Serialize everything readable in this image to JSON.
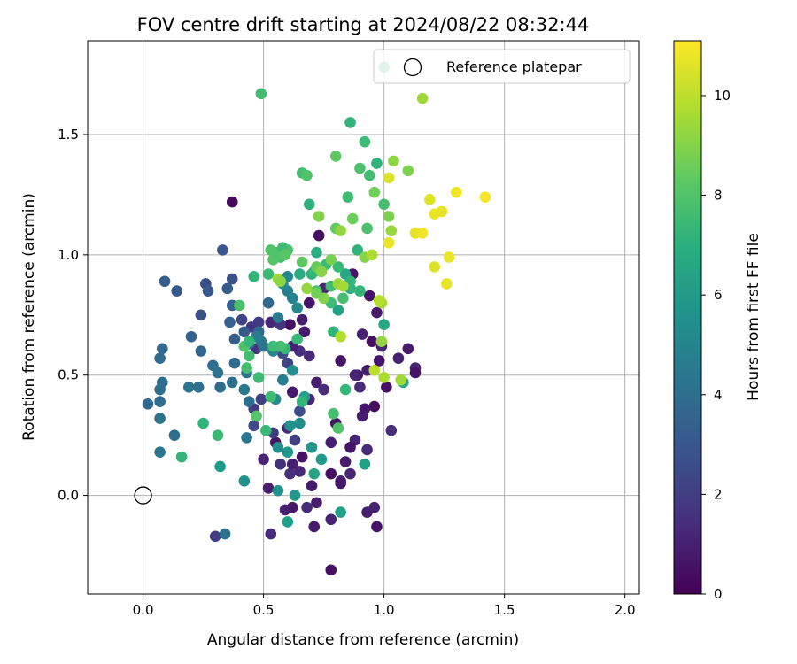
{
  "chart_data": {
    "type": "scatter",
    "title": "FOV centre drift starting at 2024/08/22 08:32:44",
    "xlabel": "Angular distance from reference (arcmin)",
    "ylabel": "Rotation from reference (arcmin)",
    "colorbar_label": "Hours from first FF file",
    "colormap": "viridis",
    "xlim": [
      -0.23,
      2.06
    ],
    "ylim": [
      -0.41,
      1.89
    ],
    "clim": [
      0,
      11.1
    ],
    "x_ticks": [
      "0.0",
      "0.5",
      "1.0",
      "1.5",
      "2.0"
    ],
    "y_ticks": [
      "0.0",
      "0.5",
      "1.0",
      "1.5"
    ],
    "colorbar_ticks": [
      "0",
      "2",
      "4",
      "6",
      "8",
      "10"
    ],
    "grid": true,
    "legend_position": "top-right",
    "reference": {
      "label": "Reference platepar",
      "x": 0.0,
      "y": 0.0
    },
    "points": [
      {
        "x": 0.37,
        "y": 1.22,
        "h": 0.3
      },
      {
        "x": 0.73,
        "y": 1.08,
        "h": 0.5
      },
      {
        "x": 0.69,
        "y": 0.8,
        "h": 0.6
      },
      {
        "x": 0.66,
        "y": 0.73,
        "h": 0.9
      },
      {
        "x": 0.61,
        "y": 0.71,
        "h": 0.5
      },
      {
        "x": 0.75,
        "y": 0.86,
        "h": 1.2
      },
      {
        "x": 0.87,
        "y": 0.92,
        "h": 0.7
      },
      {
        "x": 0.94,
        "y": 0.83,
        "h": 0.6
      },
      {
        "x": 0.91,
        "y": 0.67,
        "h": 1.0
      },
      {
        "x": 0.97,
        "y": 0.76,
        "h": 0.8
      },
      {
        "x": 0.95,
        "y": 0.64,
        "h": 0.4
      },
      {
        "x": 0.99,
        "y": 0.62,
        "h": 1.1
      },
      {
        "x": 0.98,
        "y": 0.56,
        "h": 0.6
      },
      {
        "x": 0.93,
        "y": 0.52,
        "h": 0.9
      },
      {
        "x": 0.89,
        "y": 0.5,
        "h": 0.7
      },
      {
        "x": 0.9,
        "y": 0.45,
        "h": 1.3
      },
      {
        "x": 1.01,
        "y": 0.45,
        "h": 0.5
      },
      {
        "x": 1.06,
        "y": 0.57,
        "h": 1.0
      },
      {
        "x": 1.1,
        "y": 0.61,
        "h": 0.8
      },
      {
        "x": 1.13,
        "y": 0.53,
        "h": 1.2
      },
      {
        "x": 1.13,
        "y": 0.51,
        "h": 0.6
      },
      {
        "x": 1.03,
        "y": 0.27,
        "h": 1.4
      },
      {
        "x": 0.92,
        "y": 0.36,
        "h": 0.7
      },
      {
        "x": 0.96,
        "y": 0.37,
        "h": 0.4
      },
      {
        "x": 0.91,
        "y": 0.33,
        "h": 0.9
      },
      {
        "x": 0.88,
        "y": 0.23,
        "h": 1.1
      },
      {
        "x": 0.86,
        "y": 0.2,
        "h": 0.6
      },
      {
        "x": 0.93,
        "y": 0.19,
        "h": 1.3
      },
      {
        "x": 0.84,
        "y": 0.14,
        "h": 0.8
      },
      {
        "x": 0.78,
        "y": 0.09,
        "h": 0.5
      },
      {
        "x": 0.82,
        "y": 0.06,
        "h": 1.0
      },
      {
        "x": 0.86,
        "y": 0.09,
        "h": 1.2
      },
      {
        "x": 0.82,
        "y": 0.05,
        "h": 0.7
      },
      {
        "x": 0.93,
        "y": -0.07,
        "h": 0.9
      },
      {
        "x": 0.96,
        "y": -0.05,
        "h": 1.0
      },
      {
        "x": 0.97,
        "y": -0.13,
        "h": 0.6
      },
      {
        "x": 0.78,
        "y": -0.1,
        "h": 1.1
      },
      {
        "x": 0.71,
        "y": -0.13,
        "h": 0.8
      },
      {
        "x": 0.78,
        "y": -0.31,
        "h": 0.5
      },
      {
        "x": 0.72,
        "y": -0.03,
        "h": 0.9
      },
      {
        "x": 0.68,
        "y": -0.05,
        "h": 1.3
      },
      {
        "x": 0.62,
        "y": -0.05,
        "h": 0.7
      },
      {
        "x": 0.59,
        "y": -0.06,
        "h": 1.0
      },
      {
        "x": 0.53,
        "y": -0.16,
        "h": 1.4
      },
      {
        "x": 0.7,
        "y": 0.04,
        "h": 0.8
      },
      {
        "x": 0.65,
        "y": 0.1,
        "h": 1.2
      },
      {
        "x": 0.66,
        "y": 0.16,
        "h": 0.6
      },
      {
        "x": 0.61,
        "y": 0.09,
        "h": 1.5
      },
      {
        "x": 0.62,
        "y": 0.13,
        "h": 1.0
      },
      {
        "x": 0.52,
        "y": 0.03,
        "h": 0.9
      },
      {
        "x": 0.57,
        "y": 0.13,
        "h": 1.6
      },
      {
        "x": 0.5,
        "y": 0.15,
        "h": 1.1
      },
      {
        "x": 0.55,
        "y": 0.22,
        "h": 0.7
      },
      {
        "x": 0.6,
        "y": 0.28,
        "h": 1.3
      },
      {
        "x": 0.62,
        "y": 0.43,
        "h": 0.8
      },
      {
        "x": 0.69,
        "y": 0.4,
        "h": 1.2
      },
      {
        "x": 0.72,
        "y": 0.47,
        "h": 0.9
      },
      {
        "x": 0.75,
        "y": 0.44,
        "h": 1.4
      },
      {
        "x": 0.78,
        "y": 0.22,
        "h": 1.0
      },
      {
        "x": 0.8,
        "y": 0.3,
        "h": 0.7
      },
      {
        "x": 0.88,
        "y": 0.5,
        "h": 1.1
      },
      {
        "x": 0.82,
        "y": 0.56,
        "h": 0.6
      },
      {
        "x": 0.69,
        "y": 0.58,
        "h": 1.3
      },
      {
        "x": 0.67,
        "y": 0.68,
        "h": 0.8
      },
      {
        "x": 0.65,
        "y": 0.6,
        "h": 1.5
      },
      {
        "x": 0.62,
        "y": 0.62,
        "h": 1.0
      },
      {
        "x": 0.57,
        "y": 0.71,
        "h": 1.7
      },
      {
        "x": 0.53,
        "y": 0.72,
        "h": 1.2
      },
      {
        "x": 0.48,
        "y": 0.72,
        "h": 2.0
      },
      {
        "x": 0.45,
        "y": 0.7,
        "h": 1.8
      },
      {
        "x": 0.41,
        "y": 0.73,
        "h": 2.2
      },
      {
        "x": 0.47,
        "y": 0.61,
        "h": 1.6
      },
      {
        "x": 0.46,
        "y": 0.36,
        "h": 1.9
      },
      {
        "x": 0.49,
        "y": 0.4,
        "h": 2.1
      },
      {
        "x": 0.47,
        "y": 0.33,
        "h": 1.5
      },
      {
        "x": 0.46,
        "y": 0.29,
        "h": 2.4
      },
      {
        "x": 0.54,
        "y": 0.26,
        "h": 2.0
      },
      {
        "x": 0.65,
        "y": 0.35,
        "h": 2.6
      },
      {
        "x": 0.6,
        "y": 0.55,
        "h": 2.3
      },
      {
        "x": 0.63,
        "y": 0.23,
        "h": 2.1
      },
      {
        "x": 0.58,
        "y": 0.59,
        "h": 2.5
      },
      {
        "x": 0.37,
        "y": 0.9,
        "h": 2.7
      },
      {
        "x": 0.33,
        "y": 1.02,
        "h": 2.9
      },
      {
        "x": 0.26,
        "y": 0.88,
        "h": 2.6
      },
      {
        "x": 0.24,
        "y": 0.75,
        "h": 2.8
      },
      {
        "x": 0.27,
        "y": 0.85,
        "h": 3.0
      },
      {
        "x": 0.35,
        "y": 0.86,
        "h": 3.2
      },
      {
        "x": 0.14,
        "y": 0.85,
        "h": 3.1
      },
      {
        "x": 0.09,
        "y": 0.89,
        "h": 3.3
      },
      {
        "x": 0.36,
        "y": 0.72,
        "h": 3.4
      },
      {
        "x": 0.42,
        "y": 0.68,
        "h": 3.1
      },
      {
        "x": 0.44,
        "y": 0.63,
        "h": 3.6
      },
      {
        "x": 0.38,
        "y": 0.65,
        "h": 3.3
      },
      {
        "x": 0.37,
        "y": 0.79,
        "h": 3.5
      },
      {
        "x": 0.48,
        "y": 0.68,
        "h": 3.8
      },
      {
        "x": 0.52,
        "y": 0.8,
        "h": 3.7
      },
      {
        "x": 0.2,
        "y": 0.66,
        "h": 3.4
      },
      {
        "x": 0.24,
        "y": 0.6,
        "h": 3.6
      },
      {
        "x": 0.08,
        "y": 0.61,
        "h": 3.8
      },
      {
        "x": 0.07,
        "y": 0.57,
        "h": 3.9
      },
      {
        "x": 0.08,
        "y": 0.47,
        "h": 4.0
      },
      {
        "x": 0.07,
        "y": 0.44,
        "h": 4.1
      },
      {
        "x": 0.07,
        "y": 0.39,
        "h": 3.9
      },
      {
        "x": 0.07,
        "y": 0.32,
        "h": 4.2
      },
      {
        "x": 0.02,
        "y": 0.38,
        "h": 3.7
      },
      {
        "x": 0.13,
        "y": 0.25,
        "h": 4.0
      },
      {
        "x": 0.07,
        "y": 0.18,
        "h": 4.3
      },
      {
        "x": 0.29,
        "y": 0.54,
        "h": 4.0
      },
      {
        "x": 0.31,
        "y": 0.51,
        "h": 4.2
      },
      {
        "x": 0.23,
        "y": 0.45,
        "h": 4.1
      },
      {
        "x": 0.19,
        "y": 0.45,
        "h": 4.3
      },
      {
        "x": 0.32,
        "y": 0.45,
        "h": 3.9
      },
      {
        "x": 0.37,
        "y": 0.47,
        "h": 4.1
      },
      {
        "x": 0.38,
        "y": 0.55,
        "h": 3.8
      },
      {
        "x": 0.43,
        "y": 0.51,
        "h": 4.2
      },
      {
        "x": 0.42,
        "y": 0.44,
        "h": 4.4
      },
      {
        "x": 0.44,
        "y": 0.39,
        "h": 4.0
      },
      {
        "x": 0.43,
        "y": 0.24,
        "h": 4.3
      },
      {
        "x": 0.3,
        "y": -0.17,
        "h": 2.0
      },
      {
        "x": 0.34,
        "y": -0.16,
        "h": 4.2
      },
      {
        "x": 0.49,
        "y": 0.64,
        "h": 4.4
      },
      {
        "x": 0.47,
        "y": 0.66,
        "h": 4.6
      },
      {
        "x": 0.5,
        "y": 0.62,
        "h": 4.2
      },
      {
        "x": 0.56,
        "y": 0.74,
        "h": 4.5
      },
      {
        "x": 0.59,
        "y": 0.61,
        "h": 4.7
      },
      {
        "x": 0.58,
        "y": 0.48,
        "h": 4.8
      },
      {
        "x": 0.6,
        "y": 0.85,
        "h": 4.9
      },
      {
        "x": 0.6,
        "y": 0.91,
        "h": 5.1
      },
      {
        "x": 0.62,
        "y": 0.82,
        "h": 5.0
      },
      {
        "x": 0.64,
        "y": 0.78,
        "h": 5.2
      },
      {
        "x": 0.58,
        "y": 0.88,
        "h": 5.4
      },
      {
        "x": 0.54,
        "y": 0.6,
        "h": 5.0
      },
      {
        "x": 0.55,
        "y": 0.4,
        "h": 5.3
      },
      {
        "x": 0.62,
        "y": 0.52,
        "h": 5.5
      },
      {
        "x": 0.61,
        "y": 0.29,
        "h": 5.6
      },
      {
        "x": 0.65,
        "y": 0.3,
        "h": 5.4
      },
      {
        "x": 0.56,
        "y": 0.02,
        "h": 5.7
      },
      {
        "x": 0.6,
        "y": 0.18,
        "h": 5.8
      },
      {
        "x": 0.7,
        "y": 0.2,
        "h": 5.9
      },
      {
        "x": 0.74,
        "y": 0.15,
        "h": 6.0
      },
      {
        "x": 0.56,
        "y": 0.2,
        "h": 5.5
      },
      {
        "x": 0.42,
        "y": 0.06,
        "h": 5.6
      },
      {
        "x": 0.32,
        "y": 0.12,
        "h": 6.1
      },
      {
        "x": 0.6,
        "y": -0.11,
        "h": 6.2
      },
      {
        "x": 0.63,
        "y": 0.0,
        "h": 5.9
      },
      {
        "x": 0.82,
        "y": -0.07,
        "h": 6.3
      },
      {
        "x": 0.67,
        "y": 0.41,
        "h": 6.2
      },
      {
        "x": 0.71,
        "y": 0.09,
        "h": 6.5
      },
      {
        "x": 0.81,
        "y": 0.77,
        "h": 6.4
      },
      {
        "x": 0.84,
        "y": 0.92,
        "h": 6.6
      },
      {
        "x": 0.92,
        "y": 0.13,
        "h": 6.3
      },
      {
        "x": 1.0,
        "y": 0.71,
        "h": 6.6
      },
      {
        "x": 1.08,
        "y": 0.47,
        "h": 6.7
      },
      {
        "x": 0.69,
        "y": 1.21,
        "h": 7.0
      },
      {
        "x": 0.72,
        "y": 1.01,
        "h": 6.9
      },
      {
        "x": 0.89,
        "y": 1.02,
        "h": 7.2
      },
      {
        "x": 0.86,
        "y": 0.86,
        "h": 7.1
      },
      {
        "x": 0.9,
        "y": 0.85,
        "h": 7.3
      },
      {
        "x": 0.65,
        "y": 0.92,
        "h": 6.8
      },
      {
        "x": 0.7,
        "y": 0.92,
        "h": 7.0
      },
      {
        "x": 0.71,
        "y": 0.93,
        "h": 7.4
      },
      {
        "x": 0.76,
        "y": 0.96,
        "h": 7.6
      },
      {
        "x": 0.81,
        "y": 0.95,
        "h": 7.5
      },
      {
        "x": 0.86,
        "y": 0.89,
        "h": 7.3
      },
      {
        "x": 0.78,
        "y": 0.87,
        "h": 7.7
      },
      {
        "x": 0.72,
        "y": 0.85,
        "h": 7.9
      },
      {
        "x": 0.83,
        "y": 0.82,
        "h": 7.8
      },
      {
        "x": 0.78,
        "y": 0.8,
        "h": 7.6
      },
      {
        "x": 0.64,
        "y": 0.65,
        "h": 7.5
      },
      {
        "x": 0.79,
        "y": 0.68,
        "h": 7.2
      },
      {
        "x": 0.84,
        "y": 0.44,
        "h": 7.4
      },
      {
        "x": 0.66,
        "y": 0.39,
        "h": 7.3
      },
      {
        "x": 0.51,
        "y": 0.27,
        "h": 7.5
      },
      {
        "x": 0.53,
        "y": 0.41,
        "h": 7.7
      },
      {
        "x": 0.59,
        "y": 0.61,
        "h": 7.4
      },
      {
        "x": 0.57,
        "y": 0.62,
        "h": 7.8
      },
      {
        "x": 0.54,
        "y": 0.62,
        "h": 7.6
      },
      {
        "x": 0.46,
        "y": 0.91,
        "h": 7.3
      },
      {
        "x": 0.52,
        "y": 0.92,
        "h": 7.5
      },
      {
        "x": 0.57,
        "y": 0.99,
        "h": 7.7
      },
      {
        "x": 0.6,
        "y": 1.02,
        "h": 7.9
      },
      {
        "x": 0.55,
        "y": 1.01,
        "h": 7.8
      },
      {
        "x": 0.53,
        "y": 1.02,
        "h": 8.0
      },
      {
        "x": 0.54,
        "y": 0.98,
        "h": 8.1
      },
      {
        "x": 0.56,
        "y": 1.0,
        "h": 8.0
      },
      {
        "x": 0.58,
        "y": 1.03,
        "h": 7.6
      },
      {
        "x": 0.59,
        "y": 1.0,
        "h": 8.2
      },
      {
        "x": 0.66,
        "y": 0.97,
        "h": 8.3
      },
      {
        "x": 0.42,
        "y": 0.62,
        "h": 8.0
      },
      {
        "x": 0.44,
        "y": 0.58,
        "h": 7.7
      },
      {
        "x": 0.43,
        "y": 0.53,
        "h": 7.8
      },
      {
        "x": 0.4,
        "y": 0.79,
        "h": 7.9
      },
      {
        "x": 0.44,
        "y": 0.64,
        "h": 7.4
      },
      {
        "x": 0.48,
        "y": 0.49,
        "h": 7.6
      },
      {
        "x": 0.25,
        "y": 0.3,
        "h": 7.2
      },
      {
        "x": 0.31,
        "y": 0.25,
        "h": 7.5
      },
      {
        "x": 0.16,
        "y": 0.16,
        "h": 7.3
      },
      {
        "x": 0.47,
        "y": 0.33,
        "h": 8.1
      },
      {
        "x": 0.79,
        "y": 0.34,
        "h": 7.8
      },
      {
        "x": 0.81,
        "y": 0.28,
        "h": 8.0
      },
      {
        "x": 0.49,
        "y": 1.67,
        "h": 7.7
      },
      {
        "x": 0.86,
        "y": 1.55,
        "h": 7.3
      },
      {
        "x": 0.92,
        "y": 1.47,
        "h": 7.6
      },
      {
        "x": 0.66,
        "y": 1.34,
        "h": 7.8
      },
      {
        "x": 0.68,
        "y": 1.33,
        "h": 8.0
      },
      {
        "x": 0.9,
        "y": 1.36,
        "h": 7.9
      },
      {
        "x": 0.97,
        "y": 1.38,
        "h": 7.2
      },
      {
        "x": 0.94,
        "y": 1.33,
        "h": 7.7
      },
      {
        "x": 0.8,
        "y": 1.41,
        "h": 8.3
      },
      {
        "x": 1.0,
        "y": 1.78,
        "h": 7.4
      },
      {
        "x": 0.85,
        "y": 1.24,
        "h": 7.6
      },
      {
        "x": 0.87,
        "y": 1.15,
        "h": 8.6
      },
      {
        "x": 0.93,
        "y": 1.11,
        "h": 7.9
      },
      {
        "x": 0.96,
        "y": 1.26,
        "h": 8.7
      },
      {
        "x": 1.0,
        "y": 1.21,
        "h": 7.8
      },
      {
        "x": 1.1,
        "y": 1.35,
        "h": 8.9
      },
      {
        "x": 1.04,
        "y": 1.39,
        "h": 9.2
      },
      {
        "x": 1.16,
        "y": 1.65,
        "h": 9.5
      },
      {
        "x": 0.73,
        "y": 1.16,
        "h": 9.0
      },
      {
        "x": 0.8,
        "y": 1.11,
        "h": 8.4
      },
      {
        "x": 0.82,
        "y": 1.1,
        "h": 9.3
      },
      {
        "x": 0.78,
        "y": 0.98,
        "h": 8.8
      },
      {
        "x": 0.72,
        "y": 0.95,
        "h": 8.5
      },
      {
        "x": 0.74,
        "y": 0.93,
        "h": 9.1
      },
      {
        "x": 0.81,
        "y": 0.88,
        "h": 9.4
      },
      {
        "x": 0.83,
        "y": 0.87,
        "h": 9.6
      },
      {
        "x": 0.75,
        "y": 0.82,
        "h": 9.0
      },
      {
        "x": 0.72,
        "y": 0.84,
        "h": 8.7
      },
      {
        "x": 0.68,
        "y": 0.86,
        "h": 9.3
      },
      {
        "x": 0.56,
        "y": 0.9,
        "h": 9.5
      },
      {
        "x": 0.57,
        "y": 0.89,
        "h": 9.2
      },
      {
        "x": 0.92,
        "y": 0.99,
        "h": 9.1
      },
      {
        "x": 0.95,
        "y": 1.0,
        "h": 9.7
      },
      {
        "x": 1.02,
        "y": 1.16,
        "h": 8.9
      },
      {
        "x": 1.03,
        "y": 1.1,
        "h": 9.4
      },
      {
        "x": 0.82,
        "y": 0.66,
        "h": 9.8
      },
      {
        "x": 0.99,
        "y": 0.64,
        "h": 9.3
      },
      {
        "x": 0.99,
        "y": 0.8,
        "h": 9.6
      },
      {
        "x": 0.98,
        "y": 0.81,
        "h": 9.9
      },
      {
        "x": 0.96,
        "y": 0.52,
        "h": 10.0
      },
      {
        "x": 1.0,
        "y": 0.49,
        "h": 9.7
      },
      {
        "x": 1.07,
        "y": 0.48,
        "h": 9.5
      },
      {
        "x": 1.02,
        "y": 1.32,
        "h": 10.5
      },
      {
        "x": 1.02,
        "y": 1.05,
        "h": 10.8
      },
      {
        "x": 1.13,
        "y": 1.09,
        "h": 10.7
      },
      {
        "x": 1.16,
        "y": 1.09,
        "h": 10.9
      },
      {
        "x": 1.19,
        "y": 1.23,
        "h": 10.6
      },
      {
        "x": 1.21,
        "y": 1.17,
        "h": 10.8
      },
      {
        "x": 1.24,
        "y": 1.18,
        "h": 10.7
      },
      {
        "x": 1.3,
        "y": 1.26,
        "h": 10.9
      },
      {
        "x": 1.42,
        "y": 1.24,
        "h": 11.0
      },
      {
        "x": 1.21,
        "y": 0.95,
        "h": 10.6
      },
      {
        "x": 1.27,
        "y": 0.99,
        "h": 10.8
      },
      {
        "x": 1.26,
        "y": 0.88,
        "h": 10.7
      }
    ]
  }
}
